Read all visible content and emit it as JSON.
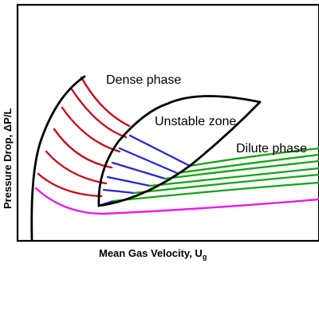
{
  "diagram": {
    "region_labels": {
      "dense": "Dense phase",
      "unstable": "Unstable zone",
      "dilute": "Dilute phase"
    },
    "axes": {
      "x_label_main": "Mean Gas Velocity, U",
      "x_label_sub": "g",
      "y_label": "Pressure Drop, ΔP/L"
    },
    "curve_colors": {
      "boundary": "#000000",
      "dense": "#c0121f",
      "unstable": "#2727c9",
      "dilute": "#16a316",
      "empty_tube": "#e51de5"
    }
  }
}
